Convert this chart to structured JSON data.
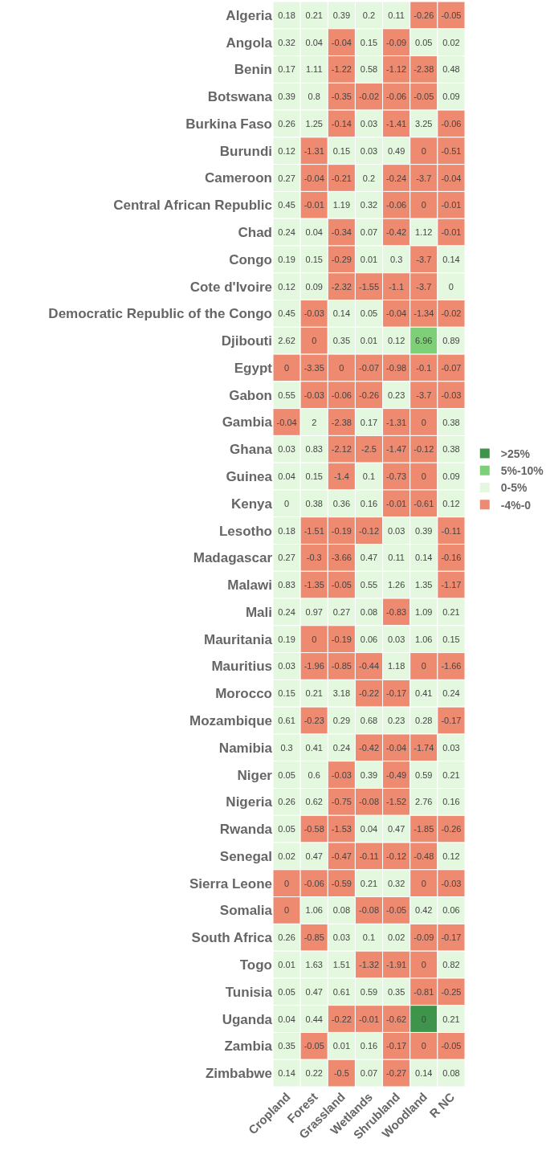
{
  "chart_data": {
    "type": "heatmap",
    "legend": "right",
    "data_labels": true,
    "categories": [
      "Cropland",
      "Forest",
      "Grassland",
      "Wetlands",
      "Shrubland",
      "Woodland",
      "R NC"
    ],
    "y_categories": [
      "Algeria",
      "Angola",
      "Benin",
      "Botswana",
      "Burkina Faso",
      "Burundi",
      "Cameroon",
      "Central African Republic",
      "Chad",
      "Congo",
      "Cote d'Ivoire",
      "Democratic Republic of the Congo",
      "Djibouti",
      "Egypt",
      "Gabon",
      "Gambia",
      "Ghana",
      "Guinea",
      "Kenya",
      "Lesotho",
      "Madagascar",
      "Malawi",
      "Mali",
      "Mauritania",
      "Mauritius",
      "Morocco",
      "Mozambique",
      "Namibia",
      "Niger",
      "Nigeria",
      "Rwanda",
      "Senegal",
      "Sierra Leone",
      "Somalia",
      "South Africa",
      "Togo",
      "Tunisia",
      "Uganda",
      "Zambia",
      "Zimbabwe"
    ],
    "series": [
      {
        "name": ">25%",
        "color": "#3d944a",
        "values": [
          null,
          null,
          null,
          null,
          null,
          null,
          null
        ]
      },
      {
        "name": "5%-10%",
        "color": "#7dcf78",
        "values": [
          null,
          null,
          null,
          null,
          null,
          null,
          null
        ]
      },
      {
        "name": "0-5%",
        "color": "#e4f7df",
        "values": [
          null,
          null,
          null,
          null,
          null,
          null,
          null
        ]
      },
      {
        "name": "-4%-0",
        "color": "#ee8a6f",
        "values": [
          null,
          null,
          null,
          null,
          null,
          null,
          null
        ]
      }
    ],
    "cells": [
      [
        0.18,
        0.21,
        0.39,
        0.2,
        0.11,
        -0.26,
        -0.05
      ],
      [
        0.32,
        0.04,
        -0.04,
        0.15,
        -0.09,
        0.05,
        0.02
      ],
      [
        0.17,
        1.11,
        -1.22,
        0.58,
        -1.12,
        -2.38,
        0.48
      ],
      [
        0.39,
        0.8,
        -0.35,
        -0.02,
        -0.06,
        -0.05,
        0.09
      ],
      [
        0.26,
        1.25,
        -0.14,
        0.03,
        -1.41,
        3.25,
        -0.06
      ],
      [
        0.12,
        -1.31,
        0.15,
        0.03,
        0.49,
        0,
        -0.51
      ],
      [
        0.27,
        -0.04,
        -0.21,
        0.2,
        -0.24,
        -3.7,
        -0.04
      ],
      [
        0.45,
        -0.01,
        1.19,
        0.32,
        -0.06,
        0,
        -0.01
      ],
      [
        0.24,
        0.04,
        -0.34,
        0.07,
        -0.42,
        1.12,
        -0.01
      ],
      [
        0.19,
        0.15,
        -0.29,
        0.01,
        0.3,
        -3.7,
        0.14
      ],
      [
        0.12,
        0.09,
        -2.32,
        -1.55,
        -1.1,
        -3.7,
        0
      ],
      [
        0.45,
        -0.03,
        0.14,
        0.05,
        -0.04,
        -1.34,
        -0.02
      ],
      [
        2.62,
        0,
        0.35,
        0.01,
        0.12,
        6.96,
        0.89
      ],
      [
        0,
        -3.35,
        0,
        -0.07,
        -0.98,
        -0.1,
        -0.07
      ],
      [
        0.55,
        -0.03,
        -0.06,
        -0.26,
        0.23,
        -3.7,
        -0.03
      ],
      [
        -0.04,
        2,
        -2.38,
        0.17,
        -1.31,
        0,
        0.38
      ],
      [
        0.03,
        0.83,
        -2.12,
        -2.5,
        -1.47,
        -0.12,
        0.38
      ],
      [
        0.04,
        0.15,
        -1.4,
        0.1,
        -0.73,
        0,
        0.09
      ],
      [
        0,
        0.38,
        0.36,
        0.16,
        -0.01,
        -0.61,
        0.12
      ],
      [
        0.18,
        -1.51,
        -0.19,
        -0.12,
        0.03,
        0.39,
        -0.11
      ],
      [
        0.27,
        -0.3,
        -3.66,
        0.47,
        0.11,
        0.14,
        -0.16
      ],
      [
        0.83,
        -1.35,
        -0.05,
        0.55,
        1.26,
        1.35,
        -1.17
      ],
      [
        0.24,
        0.97,
        0.27,
        0.08,
        -0.83,
        1.09,
        0.21
      ],
      [
        0.19,
        0,
        -0.19,
        0.06,
        0.03,
        1.06,
        0.15
      ],
      [
        0.03,
        -1.96,
        -0.85,
        -0.44,
        1.18,
        0,
        -1.66
      ],
      [
        0.15,
        0.21,
        3.18,
        -0.22,
        -0.17,
        0.41,
        0.24
      ],
      [
        0.61,
        -0.23,
        0.29,
        0.68,
        0.23,
        0.28,
        -0.17
      ],
      [
        0.3,
        0.41,
        0.24,
        -0.42,
        -0.04,
        -1.74,
        0.03
      ],
      [
        0.05,
        0.6,
        -0.03,
        0.39,
        -0.49,
        0.59,
        0.21
      ],
      [
        0.26,
        0.62,
        -0.75,
        -0.08,
        -1.52,
        2.76,
        0.16
      ],
      [
        0.05,
        -0.58,
        -1.53,
        0.04,
        0.47,
        -1.85,
        -0.26
      ],
      [
        0.02,
        0.47,
        -0.47,
        -0.11,
        -0.12,
        -0.48,
        0.12
      ],
      [
        0,
        -0.06,
        -0.59,
        0.21,
        0.32,
        0,
        -0.03
      ],
      [
        0,
        1.06,
        0.08,
        -0.08,
        -0.05,
        0.42,
        0.06
      ],
      [
        0.26,
        -0.85,
        0.03,
        0.1,
        0.02,
        -0.09,
        -0.17
      ],
      [
        0.01,
        1.63,
        1.51,
        -1.32,
        -1.91,
        0,
        0.82
      ],
      [
        0.05,
        0.47,
        0.61,
        0.59,
        0.35,
        -0.81,
        -0.25
      ],
      [
        0.04,
        0.44,
        -0.22,
        -0.01,
        -0.62,
        0,
        0.21
      ],
      [
        0.35,
        -0.05,
        0.01,
        0.16,
        -0.17,
        0,
        -0.05
      ],
      [
        0.14,
        0.22,
        -0.5,
        0.07,
        -0.27,
        0.14,
        0.08
      ]
    ],
    "colors": [
      [
        "#e4f7df",
        "#e4f7df",
        "#e4f7df",
        "#e4f7df",
        "#e4f7df",
        "#ee8a6f",
        "#ee8a6f"
      ],
      [
        "#e4f7df",
        "#e4f7df",
        "#ee8a6f",
        "#e4f7df",
        "#ee8a6f",
        "#e4f7df",
        "#e4f7df"
      ],
      [
        "#e4f7df",
        "#e4f7df",
        "#ee8a6f",
        "#e4f7df",
        "#ee8a6f",
        "#ee8a6f",
        "#e4f7df"
      ],
      [
        "#e4f7df",
        "#e4f7df",
        "#ee8a6f",
        "#ee8a6f",
        "#ee8a6f",
        "#ee8a6f",
        "#e4f7df"
      ],
      [
        "#e4f7df",
        "#e4f7df",
        "#ee8a6f",
        "#e4f7df",
        "#ee8a6f",
        "#e4f7df",
        "#ee8a6f"
      ],
      [
        "#e4f7df",
        "#ee8a6f",
        "#e4f7df",
        "#e4f7df",
        "#e4f7df",
        "#ee8a6f",
        "#ee8a6f"
      ],
      [
        "#e4f7df",
        "#ee8a6f",
        "#ee8a6f",
        "#e4f7df",
        "#ee8a6f",
        "#ee8a6f",
        "#ee8a6f"
      ],
      [
        "#e4f7df",
        "#ee8a6f",
        "#e4f7df",
        "#e4f7df",
        "#ee8a6f",
        "#ee8a6f",
        "#ee8a6f"
      ],
      [
        "#e4f7df",
        "#e4f7df",
        "#ee8a6f",
        "#e4f7df",
        "#ee8a6f",
        "#e4f7df",
        "#ee8a6f"
      ],
      [
        "#e4f7df",
        "#e4f7df",
        "#ee8a6f",
        "#e4f7df",
        "#e4f7df",
        "#ee8a6f",
        "#e4f7df"
      ],
      [
        "#e4f7df",
        "#e4f7df",
        "#ee8a6f",
        "#ee8a6f",
        "#ee8a6f",
        "#ee8a6f",
        "#e4f7df"
      ],
      [
        "#e4f7df",
        "#ee8a6f",
        "#e4f7df",
        "#e4f7df",
        "#ee8a6f",
        "#ee8a6f",
        "#ee8a6f"
      ],
      [
        "#e4f7df",
        "#ee8a6f",
        "#e4f7df",
        "#e4f7df",
        "#e4f7df",
        "#7dcf78",
        "#e4f7df"
      ],
      [
        "#ee8a6f",
        "#ee8a6f",
        "#ee8a6f",
        "#ee8a6f",
        "#ee8a6f",
        "#ee8a6f",
        "#ee8a6f"
      ],
      [
        "#e4f7df",
        "#ee8a6f",
        "#ee8a6f",
        "#ee8a6f",
        "#e4f7df",
        "#ee8a6f",
        "#ee8a6f"
      ],
      [
        "#ee8a6f",
        "#e4f7df",
        "#ee8a6f",
        "#e4f7df",
        "#ee8a6f",
        "#ee8a6f",
        "#e4f7df"
      ],
      [
        "#e4f7df",
        "#e4f7df",
        "#ee8a6f",
        "#ee8a6f",
        "#ee8a6f",
        "#ee8a6f",
        "#e4f7df"
      ],
      [
        "#e4f7df",
        "#e4f7df",
        "#ee8a6f",
        "#e4f7df",
        "#ee8a6f",
        "#ee8a6f",
        "#e4f7df"
      ],
      [
        "#e4f7df",
        "#e4f7df",
        "#e4f7df",
        "#e4f7df",
        "#ee8a6f",
        "#ee8a6f",
        "#e4f7df"
      ],
      [
        "#e4f7df",
        "#ee8a6f",
        "#ee8a6f",
        "#ee8a6f",
        "#e4f7df",
        "#e4f7df",
        "#ee8a6f"
      ],
      [
        "#e4f7df",
        "#ee8a6f",
        "#ee8a6f",
        "#e4f7df",
        "#e4f7df",
        "#e4f7df",
        "#ee8a6f"
      ],
      [
        "#e4f7df",
        "#ee8a6f",
        "#ee8a6f",
        "#e4f7df",
        "#e4f7df",
        "#e4f7df",
        "#ee8a6f"
      ],
      [
        "#e4f7df",
        "#e4f7df",
        "#e4f7df",
        "#e4f7df",
        "#ee8a6f",
        "#e4f7df",
        "#e4f7df"
      ],
      [
        "#e4f7df",
        "#ee8a6f",
        "#ee8a6f",
        "#e4f7df",
        "#e4f7df",
        "#e4f7df",
        "#e4f7df"
      ],
      [
        "#e4f7df",
        "#ee8a6f",
        "#ee8a6f",
        "#ee8a6f",
        "#e4f7df",
        "#ee8a6f",
        "#ee8a6f"
      ],
      [
        "#e4f7df",
        "#e4f7df",
        "#e4f7df",
        "#ee8a6f",
        "#ee8a6f",
        "#e4f7df",
        "#e4f7df"
      ],
      [
        "#e4f7df",
        "#ee8a6f",
        "#e4f7df",
        "#e4f7df",
        "#e4f7df",
        "#e4f7df",
        "#ee8a6f"
      ],
      [
        "#e4f7df",
        "#e4f7df",
        "#e4f7df",
        "#ee8a6f",
        "#ee8a6f",
        "#ee8a6f",
        "#e4f7df"
      ],
      [
        "#e4f7df",
        "#e4f7df",
        "#ee8a6f",
        "#e4f7df",
        "#ee8a6f",
        "#e4f7df",
        "#e4f7df"
      ],
      [
        "#e4f7df",
        "#e4f7df",
        "#ee8a6f",
        "#ee8a6f",
        "#ee8a6f",
        "#e4f7df",
        "#e4f7df"
      ],
      [
        "#e4f7df",
        "#ee8a6f",
        "#ee8a6f",
        "#e4f7df",
        "#e4f7df",
        "#ee8a6f",
        "#ee8a6f"
      ],
      [
        "#e4f7df",
        "#e4f7df",
        "#ee8a6f",
        "#ee8a6f",
        "#ee8a6f",
        "#ee8a6f",
        "#e4f7df"
      ],
      [
        "#ee8a6f",
        "#ee8a6f",
        "#ee8a6f",
        "#e4f7df",
        "#e4f7df",
        "#ee8a6f",
        "#ee8a6f"
      ],
      [
        "#ee8a6f",
        "#e4f7df",
        "#e4f7df",
        "#ee8a6f",
        "#ee8a6f",
        "#e4f7df",
        "#e4f7df"
      ],
      [
        "#e4f7df",
        "#ee8a6f",
        "#e4f7df",
        "#e4f7df",
        "#e4f7df",
        "#ee8a6f",
        "#ee8a6f"
      ],
      [
        "#e4f7df",
        "#e4f7df",
        "#e4f7df",
        "#ee8a6f",
        "#ee8a6f",
        "#ee8a6f",
        "#e4f7df"
      ],
      [
        "#e4f7df",
        "#e4f7df",
        "#e4f7df",
        "#e4f7df",
        "#e4f7df",
        "#ee8a6f",
        "#ee8a6f"
      ],
      [
        "#e4f7df",
        "#e4f7df",
        "#ee8a6f",
        "#ee8a6f",
        "#ee8a6f",
        "#3d944a",
        "#e4f7df"
      ],
      [
        "#e4f7df",
        "#ee8a6f",
        "#e4f7df",
        "#e4f7df",
        "#ee8a6f",
        "#ee8a6f",
        "#ee8a6f"
      ],
      [
        "#e4f7df",
        "#e4f7df",
        "#ee8a6f",
        "#e4f7df",
        "#ee8a6f",
        "#e4f7df",
        "#e4f7df"
      ]
    ]
  }
}
